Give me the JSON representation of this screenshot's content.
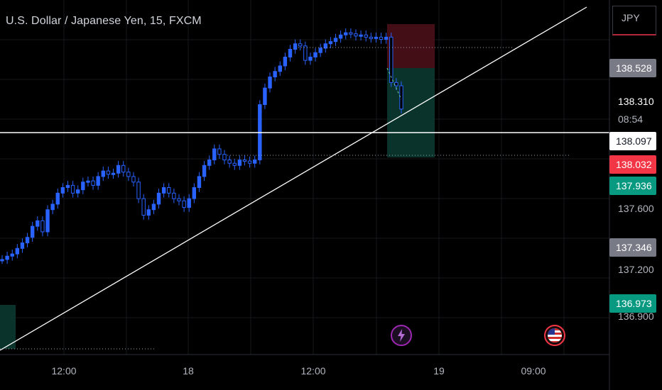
{
  "title": "U.S. Dollar / Japanese Yen, 15, FXCM",
  "currency": "JPY",
  "colors": {
    "candle": "#2962ff",
    "stop_zone": "#4a1018",
    "target_zone": "#0b3a30",
    "tag_red": "#f23645",
    "tag_green": "#089981",
    "tag_gray": "#787b86"
  },
  "y_axis": {
    "ticks": [
      "137.600",
      "137.200",
      "136.900"
    ],
    "price_labels": [
      {
        "value": "138.528",
        "style": "gray"
      },
      {
        "value": "138.310",
        "style": "plain",
        "sub": "08:54"
      },
      {
        "value": "138.097",
        "style": "white"
      },
      {
        "value": "138.032",
        "style": "red"
      },
      {
        "value": "137.936",
        "style": "green"
      },
      {
        "value": "137.346",
        "style": "gray"
      },
      {
        "value": "136.973",
        "style": "green"
      }
    ]
  },
  "x_axis": {
    "ticks": [
      "12:00",
      "18",
      "12:00",
      "19",
      "09:00"
    ]
  },
  "icons": {
    "event1": "lightning-icon",
    "event2": "us-flag-icon"
  },
  "chart_data": {
    "type": "candlestick",
    "symbol": "U.S. Dollar / Japanese Yen",
    "interval": "15",
    "source": "FXCM",
    "levels": {
      "horizontal_line": 138.097,
      "stop": 138.528,
      "entry": 138.528,
      "target": 137.936,
      "last": 138.31
    },
    "close_series": [
      136.95,
      136.98,
      137.0,
      137.05,
      137.1,
      137.15,
      137.25,
      137.3,
      137.2,
      137.4,
      137.45,
      137.55,
      137.6,
      137.62,
      137.55,
      137.58,
      137.65,
      137.66,
      137.62,
      137.7,
      137.75,
      137.72,
      137.73,
      137.8,
      137.74,
      137.7,
      137.65,
      137.5,
      137.35,
      137.4,
      137.45,
      137.55,
      137.6,
      137.55,
      137.5,
      137.48,
      137.42,
      137.5,
      137.6,
      137.7,
      137.8,
      137.85,
      137.95,
      137.9,
      137.85,
      137.82,
      137.8,
      137.85,
      137.84,
      137.82,
      137.85,
      138.35,
      138.5,
      138.6,
      138.65,
      138.7,
      138.78,
      138.85,
      138.9,
      138.88,
      138.75,
      138.78,
      138.82,
      138.86,
      138.9,
      138.92,
      138.95,
      138.98,
      139.0,
      138.99,
      138.97,
      138.98,
      138.96,
      138.95,
      138.96,
      138.94,
      138.96,
      138.55,
      138.52,
      138.31
    ]
  }
}
